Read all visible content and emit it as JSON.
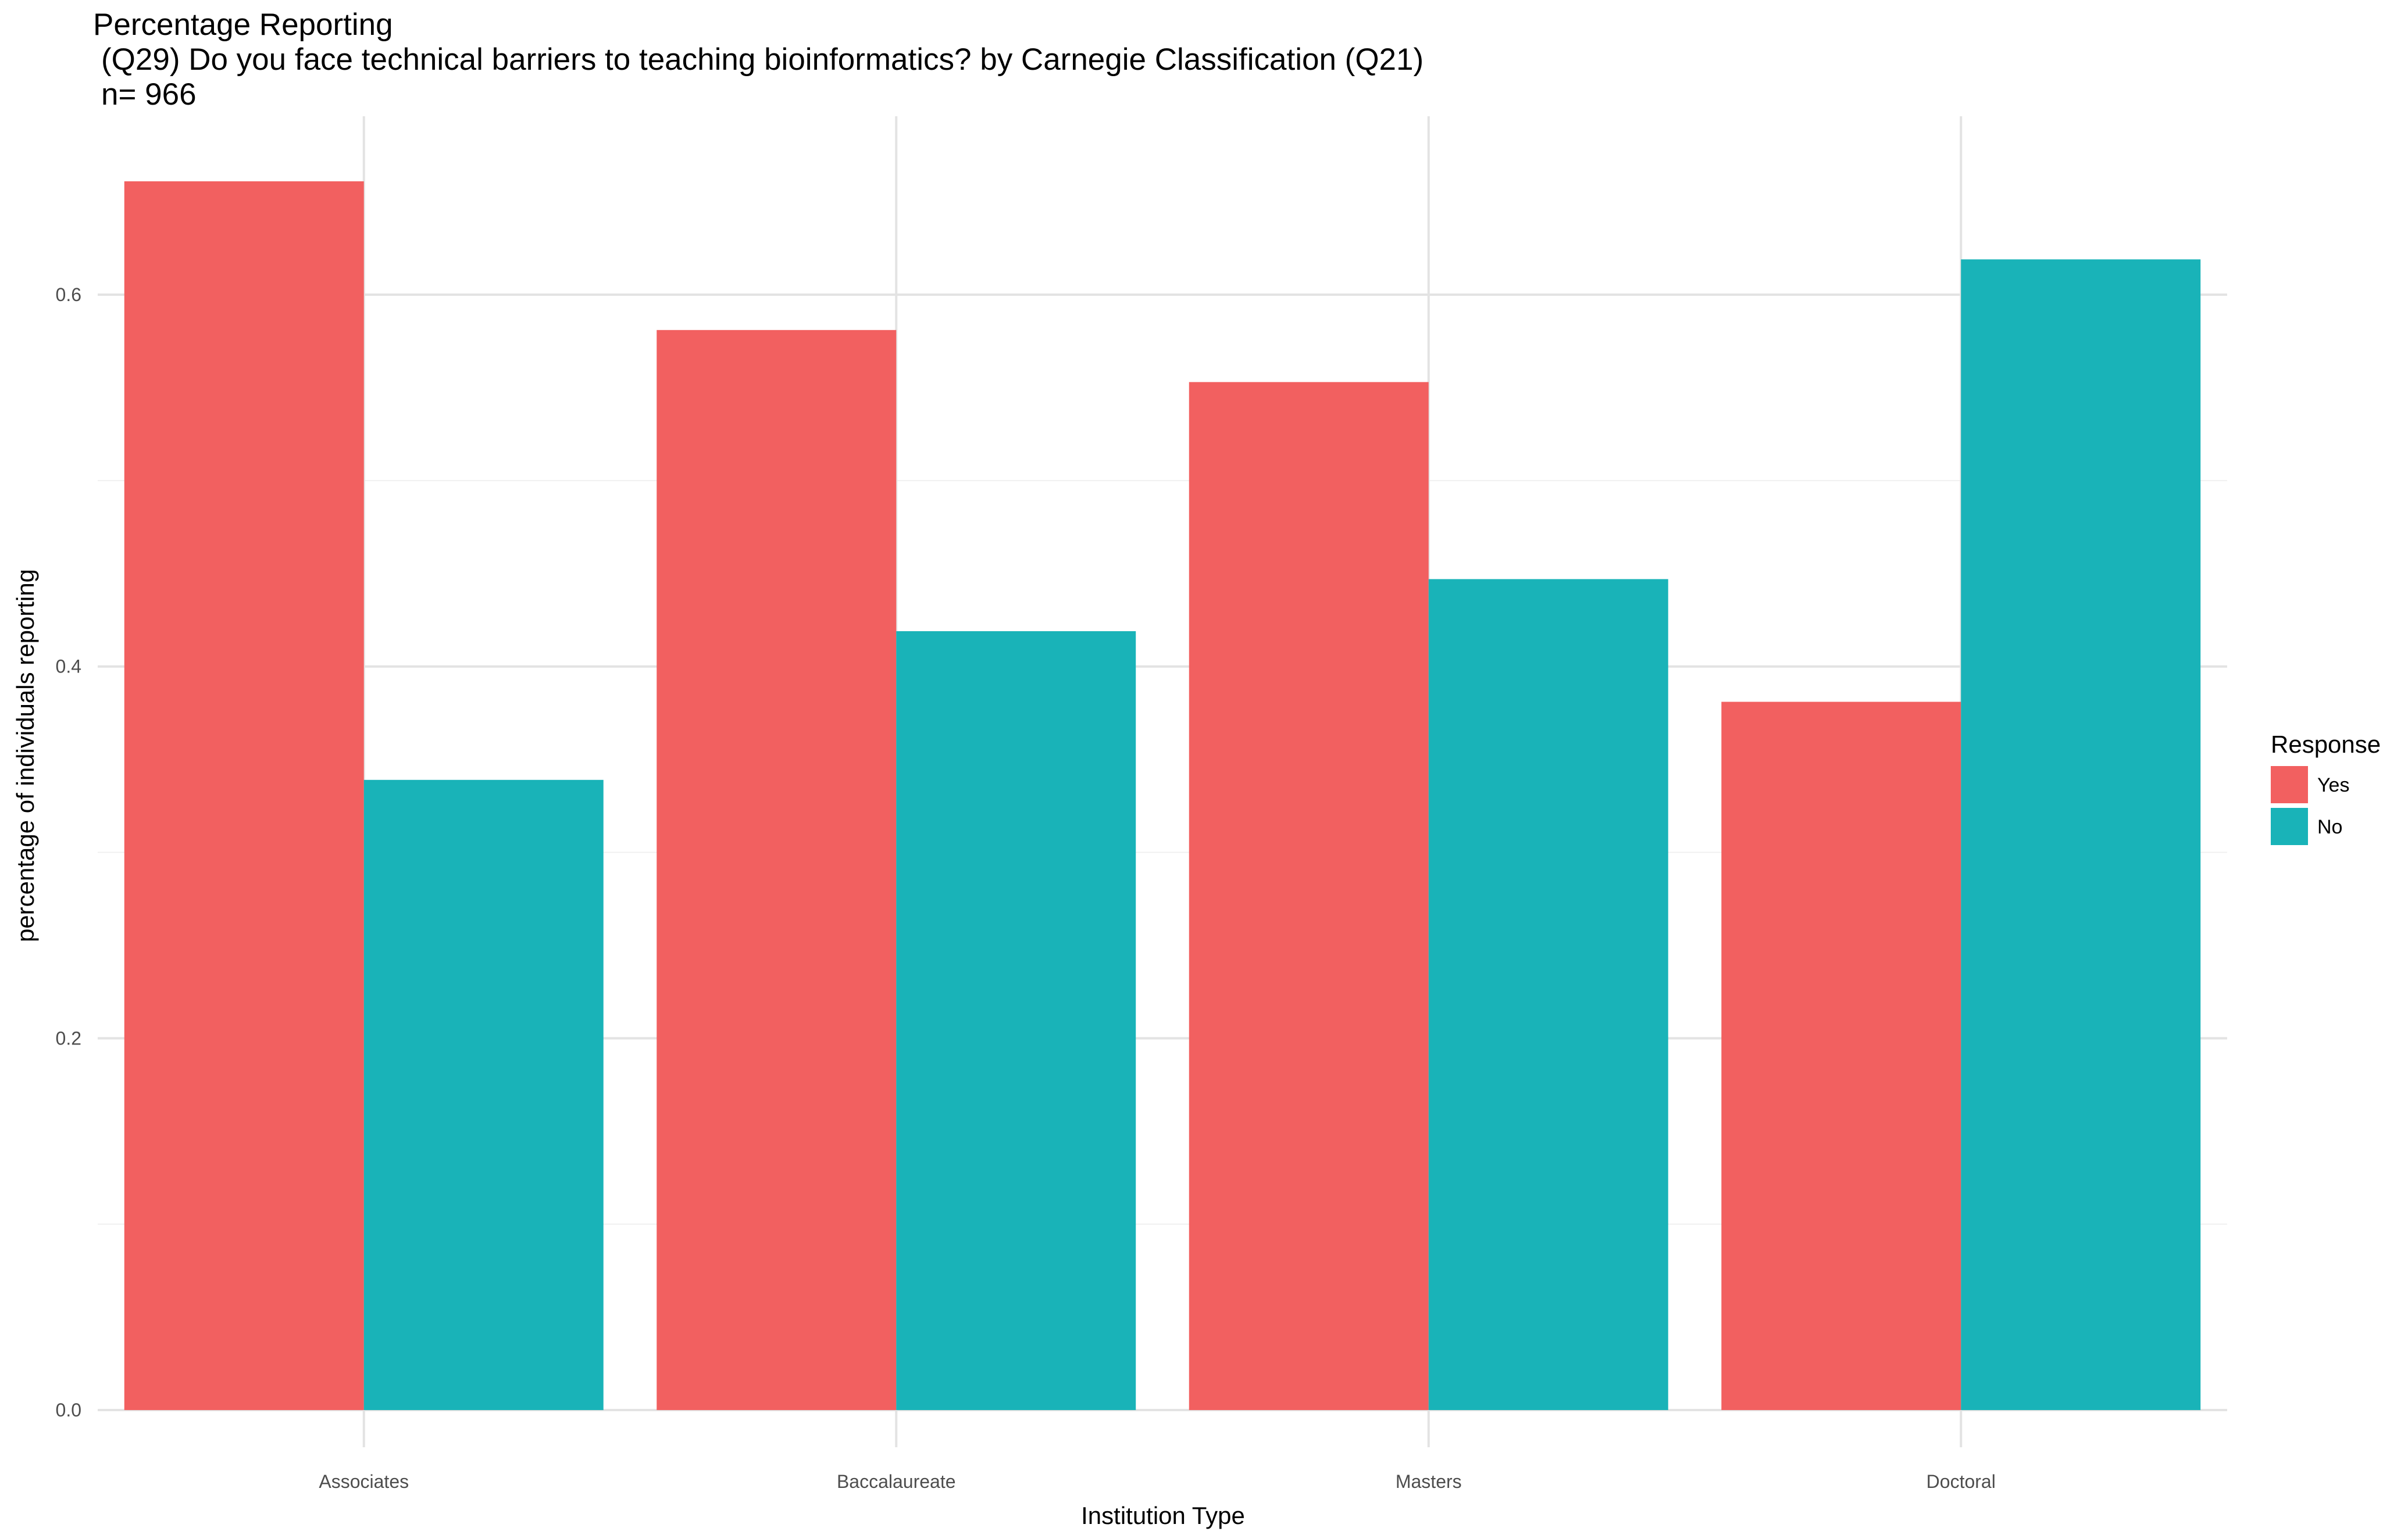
{
  "chart_data": {
    "type": "bar",
    "title": "Percentage Reporting",
    "subtitle": "(Q29) Do you face technical barriers to teaching bioinformatics? by Carnegie Classification (Q21)",
    "note": "n= 966",
    "xlabel": "Institution Type",
    "ylabel": "percentage of individuals reporting",
    "categories": [
      "Associates",
      "Baccalaureate",
      "Masters",
      "Doctoral"
    ],
    "series": [
      {
        "name": "Yes",
        "color": "#F26060",
        "values": [
          0.661,
          0.581,
          0.553,
          0.381
        ]
      },
      {
        "name": "No",
        "color": "#19B3B8",
        "values": [
          0.339,
          0.419,
          0.447,
          0.619
        ]
      }
    ],
    "ylim": [
      -0.02,
      0.696
    ],
    "yticks": [
      0.0,
      0.2,
      0.4,
      0.6
    ],
    "ytick_labels": [
      "0.0",
      "0.2",
      "0.4",
      "0.6"
    ],
    "grid": true,
    "legend": {
      "title": "Response",
      "placement": "right"
    }
  }
}
